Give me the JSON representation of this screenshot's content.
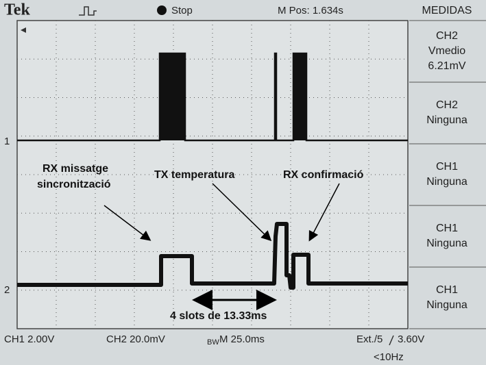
{
  "header": {
    "brand": "Tek",
    "status": "Stop",
    "position": "M Pos: 1.634s"
  },
  "menu": {
    "title": "MEDIDAS",
    "items": [
      {
        "lines": [
          "CH2",
          "Vmedio",
          "6.21mV"
        ]
      },
      {
        "lines": [
          "CH2",
          "Ninguna"
        ]
      },
      {
        "lines": [
          "CH1",
          "Ninguna"
        ]
      },
      {
        "lines": [
          "CH1",
          "Ninguna"
        ]
      },
      {
        "lines": [
          "CH1",
          "Ninguna"
        ]
      }
    ]
  },
  "channel_markers": [
    "1",
    "2"
  ],
  "annotations": {
    "rx_sync": [
      "RX missatge",
      "sincronització"
    ],
    "tx_temp": "TX temperatura",
    "rx_conf": "RX confirmació",
    "slots": "4 slots de 13.33ms"
  },
  "footer": {
    "ch1": "CH1  2.00V",
    "ch2": "CH2  20.0mV",
    "bw": "BW",
    "timebase": "M 25.0ms",
    "trigger_source": "Ext./5",
    "trigger_level": "3.60V",
    "trigger_note": "<10Hz"
  }
}
